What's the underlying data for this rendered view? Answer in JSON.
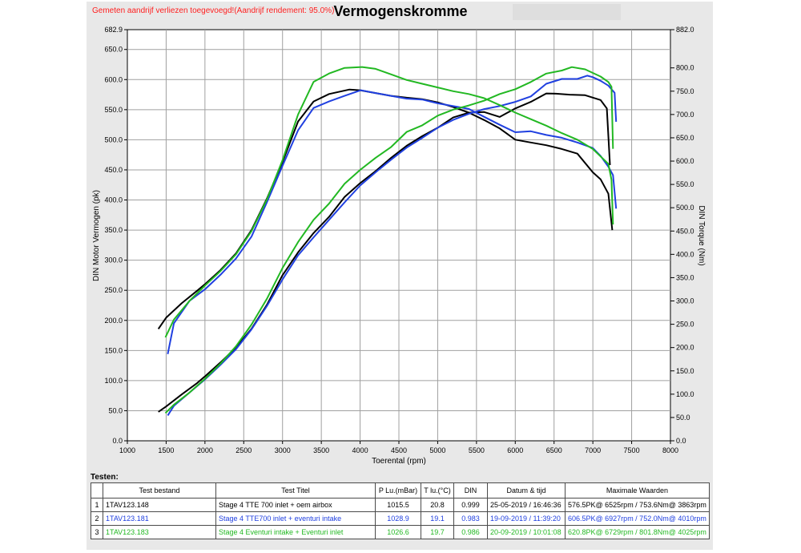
{
  "header": {
    "notice": "Gemeten aandrijf verliezen toegevoegd!(Aandrijf rendement: 95.0%)",
    "title": "Vermogenskromme"
  },
  "chart_data": {
    "type": "line",
    "title": "Vermogenskromme",
    "xlabel": "Toerental (rpm)",
    "ylabel": "DIN Motor Vermogen (pk)",
    "y2label": "DIN Torque (Nm)",
    "xlim": [
      1000,
      8000
    ],
    "ylim": [
      0,
      682.9
    ],
    "y2lim": [
      0,
      882.0
    ],
    "grid": true,
    "x_ticks": [
      1000,
      1500,
      2000,
      2500,
      3000,
      3500,
      4000,
      4500,
      5000,
      5500,
      6000,
      6500,
      7000,
      7500,
      8000
    ],
    "y_ticks": [
      "0.0",
      "50.0",
      "100.0",
      "150.0",
      "200.0",
      "250.0",
      "300.0",
      "350.0",
      "400.0",
      "450.0",
      "500.0",
      "550.0",
      "600.0",
      "650.0",
      "682.9"
    ],
    "y2_ticks": [
      "0.0",
      "50.0",
      "100.0",
      "150.0",
      "200.0",
      "250.0",
      "300.0",
      "350.0",
      "400.0",
      "450.0",
      "500.0",
      "550.0",
      "600.0",
      "650.0",
      "700.0",
      "750.0",
      "800.0",
      "882.0"
    ],
    "series": [
      {
        "color": "#000000",
        "power": [
          [
            1400,
            48
          ],
          [
            1500,
            57
          ],
          [
            1700,
            77
          ],
          [
            1900,
            96
          ],
          [
            2000,
            107
          ],
          [
            2200,
            130
          ],
          [
            2400,
            155
          ],
          [
            2600,
            186
          ],
          [
            2800,
            226
          ],
          [
            3000,
            275
          ],
          [
            3200,
            313
          ],
          [
            3400,
            345
          ],
          [
            3600,
            372
          ],
          [
            3800,
            405
          ],
          [
            4000,
            428
          ],
          [
            4200,
            448
          ],
          [
            4400,
            470
          ],
          [
            4600,
            490
          ],
          [
            4800,
            506
          ],
          [
            5000,
            520
          ],
          [
            5200,
            537
          ],
          [
            5400,
            545
          ],
          [
            5600,
            546
          ],
          [
            5800,
            538
          ],
          [
            6000,
            552
          ],
          [
            6200,
            563
          ],
          [
            6400,
            577
          ],
          [
            6525,
            576.5
          ],
          [
            6700,
            575
          ],
          [
            6900,
            574
          ],
          [
            7000,
            570
          ],
          [
            7100,
            566
          ],
          [
            7180,
            552
          ],
          [
            7220,
            458
          ]
        ],
        "torque": [
          [
            1400,
            240
          ],
          [
            1500,
            264
          ],
          [
            1700,
            295
          ],
          [
            1900,
            322
          ],
          [
            2000,
            336
          ],
          [
            2200,
            366
          ],
          [
            2400,
            402
          ],
          [
            2600,
            452
          ],
          [
            2800,
            520
          ],
          [
            3000,
            598
          ],
          [
            3200,
            685
          ],
          [
            3400,
            728
          ],
          [
            3600,
            744
          ],
          [
            3863,
            753.6
          ],
          [
            4000,
            752
          ],
          [
            4200,
            746
          ],
          [
            4400,
            740
          ],
          [
            4600,
            736
          ],
          [
            4800,
            733
          ],
          [
            5000,
            726
          ],
          [
            5200,
            716
          ],
          [
            5400,
            704
          ],
          [
            5600,
            688
          ],
          [
            5800,
            670
          ],
          [
            6000,
            646
          ],
          [
            6200,
            640
          ],
          [
            6400,
            634
          ],
          [
            6600,
            626
          ],
          [
            6800,
            616
          ],
          [
            7000,
            576
          ],
          [
            7100,
            561
          ],
          [
            7200,
            530
          ],
          [
            7250,
            452
          ]
        ]
      },
      {
        "color": "#2040e0",
        "power": [
          [
            1520,
            42
          ],
          [
            1600,
            58
          ],
          [
            1800,
            80
          ],
          [
            2000,
            102
          ],
          [
            2200,
            126
          ],
          [
            2400,
            152
          ],
          [
            2600,
            185
          ],
          [
            2800,
            224
          ],
          [
            3000,
            268
          ],
          [
            3200,
            308
          ],
          [
            3400,
            338
          ],
          [
            3600,
            367
          ],
          [
            3800,
            396
          ],
          [
            4000,
            424
          ],
          [
            4200,
            446
          ],
          [
            4400,
            467
          ],
          [
            4600,
            487
          ],
          [
            4800,
            503
          ],
          [
            5000,
            520
          ],
          [
            5200,
            533
          ],
          [
            5400,
            543
          ],
          [
            5600,
            551
          ],
          [
            5800,
            556
          ],
          [
            6000,
            563
          ],
          [
            6200,
            572
          ],
          [
            6400,
            593
          ],
          [
            6600,
            601
          ],
          [
            6800,
            601
          ],
          [
            6927,
            606.5
          ],
          [
            7000,
            604
          ],
          [
            7100,
            598
          ],
          [
            7200,
            590
          ],
          [
            7280,
            578
          ],
          [
            7300,
            530
          ]
        ],
        "torque": [
          [
            1520,
            186
          ],
          [
            1600,
            252
          ],
          [
            1800,
            300
          ],
          [
            2000,
            325
          ],
          [
            2200,
            356
          ],
          [
            2400,
            391
          ],
          [
            2600,
            438
          ],
          [
            2800,
            512
          ],
          [
            3000,
            590
          ],
          [
            3200,
            666
          ],
          [
            3400,
            714
          ],
          [
            3600,
            728
          ],
          [
            3800,
            740
          ],
          [
            4010,
            752.0
          ],
          [
            4200,
            746
          ],
          [
            4400,
            740
          ],
          [
            4600,
            734
          ],
          [
            4800,
            732
          ],
          [
            5000,
            724
          ],
          [
            5200,
            718
          ],
          [
            5400,
            712
          ],
          [
            5600,
            695
          ],
          [
            5800,
            678
          ],
          [
            6000,
            662
          ],
          [
            6200,
            664
          ],
          [
            6400,
            656
          ],
          [
            6600,
            650
          ],
          [
            6800,
            640
          ],
          [
            7000,
            628
          ],
          [
            7100,
            611
          ],
          [
            7200,
            588
          ],
          [
            7260,
            570
          ],
          [
            7300,
            498
          ]
        ]
      },
      {
        "color": "#22b822",
        "power": [
          [
            1490,
            46
          ],
          [
            1600,
            60
          ],
          [
            1800,
            80
          ],
          [
            2000,
            103
          ],
          [
            2200,
            128
          ],
          [
            2400,
            157
          ],
          [
            2600,
            193
          ],
          [
            2800,
            236
          ],
          [
            3000,
            287
          ],
          [
            3200,
            330
          ],
          [
            3400,
            367
          ],
          [
            3600,
            394
          ],
          [
            3800,
            427
          ],
          [
            4000,
            450
          ],
          [
            4200,
            470
          ],
          [
            4400,
            488
          ],
          [
            4600,
            513
          ],
          [
            4800,
            524
          ],
          [
            5000,
            540
          ],
          [
            5200,
            550
          ],
          [
            5400,
            557
          ],
          [
            5600,
            565
          ],
          [
            5800,
            576
          ],
          [
            6000,
            584
          ],
          [
            6200,
            596
          ],
          [
            6400,
            610
          ],
          [
            6600,
            615
          ],
          [
            6729,
            620.8
          ],
          [
            6900,
            617
          ],
          [
            7000,
            611
          ],
          [
            7100,
            605
          ],
          [
            7200,
            596
          ],
          [
            7240,
            588
          ],
          [
            7260,
            485
          ]
        ],
        "torque": [
          [
            1490,
            222
          ],
          [
            1600,
            260
          ],
          [
            1800,
            300
          ],
          [
            2000,
            333
          ],
          [
            2200,
            364
          ],
          [
            2400,
            400
          ],
          [
            2600,
            450
          ],
          [
            2800,
            518
          ],
          [
            3000,
            602
          ],
          [
            3200,
            700
          ],
          [
            3400,
            770
          ],
          [
            3600,
            788
          ],
          [
            3800,
            800
          ],
          [
            4025,
            801.8
          ],
          [
            4200,
            798
          ],
          [
            4400,
            786
          ],
          [
            4600,
            774
          ],
          [
            4800,
            766
          ],
          [
            5000,
            758
          ],
          [
            5200,
            750
          ],
          [
            5400,
            744
          ],
          [
            5600,
            735
          ],
          [
            5800,
            720
          ],
          [
            6000,
            704
          ],
          [
            6200,
            690
          ],
          [
            6400,
            676
          ],
          [
            6600,
            660
          ],
          [
            6800,
            646
          ],
          [
            7000,
            626
          ],
          [
            7100,
            610
          ],
          [
            7200,
            594
          ],
          [
            7240,
            560
          ],
          [
            7260,
            464
          ]
        ]
      }
    ]
  },
  "tests_label": "Testen:",
  "table": {
    "columns": [
      "",
      "Test bestand",
      "Test Titel",
      "P Lu.(mBar)",
      "T lu.(°C)",
      "DIN",
      "Datum & tijd",
      "Maximale Waarden"
    ],
    "rows": [
      {
        "idx": "1",
        "file": "1TAV123.148",
        "title": "Stage 4 TTE 700  inlet + oem airbox",
        "p": "1015.5",
        "t": "20.8",
        "din": "0.999",
        "date": "25-05-2019 / 16:46:36",
        "max": "576.5PK@ 6525rpm / 753.6Nm@ 3863rpm"
      },
      {
        "idx": "2",
        "file": "1TAV123.181",
        "title": "Stage 4 TTE700 inlet + eventuri intake",
        "p": "1028.9",
        "t": "19.1",
        "din": "0.983",
        "date": "19-09-2019 / 11:39:20",
        "max": "606.5PK@ 6927rpm / 752.0Nm@ 4010rpm"
      },
      {
        "idx": "3",
        "file": "1TAV123.183",
        "title": "Stage 4 Eventuri intake + Eventuri inlet",
        "p": "1026.6",
        "t": "19.7",
        "din": "0.986",
        "date": "20-09-2019 / 10:01:08",
        "max": "620.8PK@ 6729rpm / 801.8Nm@ 4025rpm"
      }
    ]
  }
}
